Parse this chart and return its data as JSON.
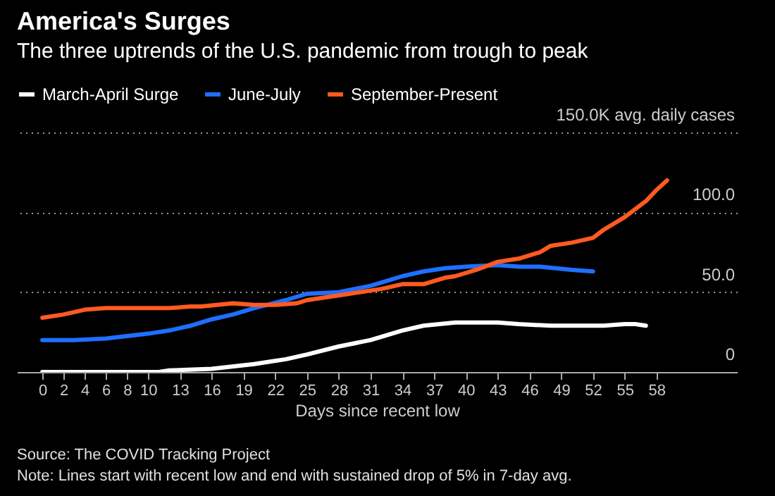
{
  "chart_data": {
    "type": "line",
    "title": "America's Surges",
    "subtitle": "The three uptrends of the U.S. pandemic from trough to peak",
    "xlabel": "Days since recent low",
    "xlim": [
      -2.4,
      65.6
    ],
    "xticks": [
      0,
      2,
      4,
      6,
      8,
      10,
      13,
      16,
      19,
      22,
      25,
      28,
      31,
      34,
      37,
      40,
      43,
      46,
      49,
      52,
      55,
      58
    ],
    "ylim": [
      0,
      150
    ],
    "yticks": [
      {
        "value": 0,
        "label": "0"
      },
      {
        "value": 50,
        "label": "50.0"
      },
      {
        "value": 100,
        "label": "100.0"
      },
      {
        "value": 150,
        "label": "150.0K avg. daily cases"
      }
    ],
    "grid": "y",
    "legend": "top left",
    "line_style": "solid",
    "marker": "none",
    "series": [
      {
        "name": "March-April Surge",
        "color": "#ffffff",
        "x": [
          0,
          4,
          8,
          11,
          12,
          16,
          20,
          23,
          25,
          28,
          31,
          33,
          34,
          36,
          39,
          43,
          45,
          48,
          53,
          55,
          56,
          57
        ],
        "values": [
          0,
          0,
          0,
          0,
          1,
          2,
          5,
          8,
          11,
          16,
          20,
          24,
          26,
          29,
          31,
          31,
          30,
          29,
          29,
          30,
          30,
          29
        ]
      },
      {
        "name": "June-July",
        "color": "#1f6fff",
        "x": [
          0,
          3,
          6,
          10,
          12,
          14,
          16,
          18,
          20,
          23,
          25,
          28,
          31,
          32,
          34,
          36,
          38,
          40,
          43,
          45,
          47,
          50,
          52
        ],
        "values": [
          20,
          20,
          21,
          24,
          26,
          29,
          33,
          36,
          40,
          45,
          49,
          50,
          54,
          56,
          60,
          63,
          65,
          66,
          67,
          66,
          66,
          64,
          63
        ]
      },
      {
        "name": "September-Present",
        "color": "#ff5a1f",
        "x": [
          0,
          2,
          4,
          6,
          8,
          10,
          12,
          14,
          15,
          18,
          20,
          22,
          24,
          25,
          27,
          29,
          31,
          32,
          34,
          36,
          38,
          39,
          41,
          43,
          45,
          47,
          48,
          50,
          52,
          53,
          55,
          57,
          58,
          59
        ],
        "values": [
          34,
          36,
          39,
          40,
          40,
          40,
          40,
          41,
          41,
          43,
          42,
          42,
          43,
          45,
          47,
          49,
          51,
          52,
          55,
          55,
          59,
          60,
          64,
          69,
          71,
          75,
          79,
          81,
          84,
          89,
          97,
          107,
          114,
          120
        ]
      }
    ],
    "annotations": [
      "Source: The COVID Tracking Project",
      "Note: Lines start with recent low and end with sustained drop of 5% in 7-day avg."
    ]
  }
}
